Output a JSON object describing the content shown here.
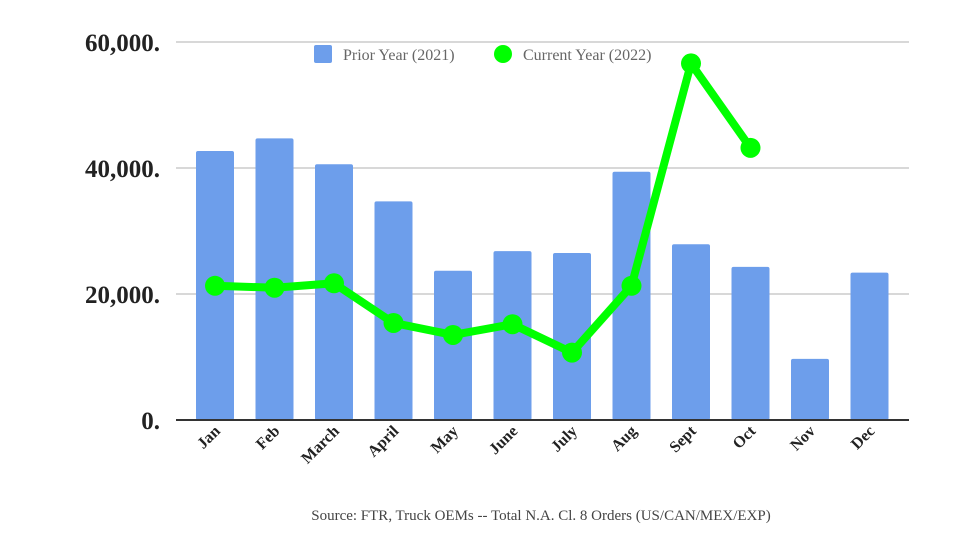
{
  "chart_data": {
    "type": "bar",
    "title": "",
    "xlabel": "",
    "ylabel": "",
    "ylim": [
      0,
      60000
    ],
    "yticks": [
      "0.",
      "20,000.",
      "40,000.",
      "60,000."
    ],
    "ytick_values": [
      0,
      20000,
      40000,
      60000
    ],
    "grid": true,
    "legend_position": "top",
    "categories": [
      "Jan",
      "Feb",
      "March",
      "April",
      "May",
      "June",
      "July",
      "Aug",
      "Sept",
      "Oct",
      "Nov",
      "Dec"
    ],
    "series": [
      {
        "name": "Prior Year (2021)",
        "type": "bar",
        "color": "#6d9eeb",
        "values": [
          42700,
          44700,
          40600,
          34700,
          23700,
          26800,
          26500,
          39400,
          27900,
          24300,
          9700,
          23400
        ]
      },
      {
        "name": "Current Year (2022)",
        "type": "line",
        "color": "#00ff00",
        "values": [
          21300,
          21000,
          21700,
          15400,
          13500,
          15200,
          10700,
          21300,
          56600,
          43200,
          null,
          null
        ]
      }
    ],
    "source": "Source: FTR, Truck OEMs -- Total N.A. Cl. 8 Orders (US/CAN/MEX/EXP)"
  }
}
